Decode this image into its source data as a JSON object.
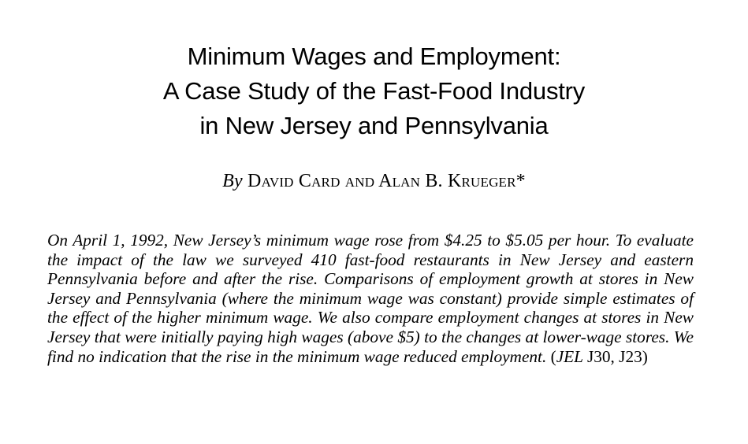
{
  "title_lines": [
    "Minimum Wages and Employment:",
    "A Case Study of the Fast-Food Industry",
    "in New Jersey and Pennsylvania"
  ],
  "byline": {
    "by": "By",
    "authors": "David Card and Alan B. Krueger*"
  },
  "abstract": {
    "body": "On April 1, 1992, New Jersey’s minimum wage rose from $4.25 to $5.05 per hour. To evaluate the impact of the law we surveyed 410 fast-food restaurants in New Jersey and eastern Pennsylvania before and after the rise. Comparisons of employment growth at stores in New Jersey and Pennsylvania (where the minimum wage was constant) provide simple estimates of the effect of the higher minimum wage. We also compare employment changes at stores in New Jersey that were initially paying high wages (above $5) to the changes at lower-wage stores. We find no indication that the rise in the minimum wage reduced employment.",
    "jel_open": "(",
    "jel_label": "JEL",
    "jel_codes": "J30, J23)"
  }
}
